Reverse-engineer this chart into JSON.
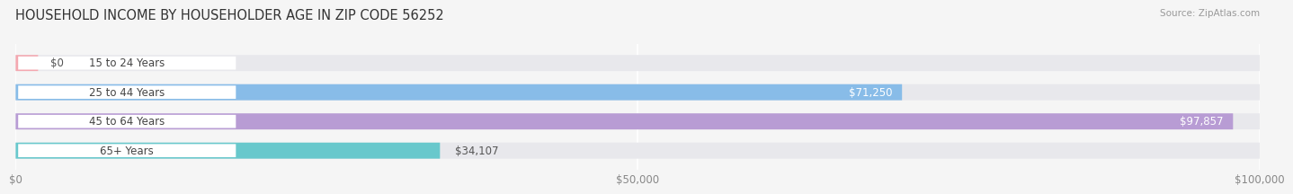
{
  "title": "HOUSEHOLD INCOME BY HOUSEHOLDER AGE IN ZIP CODE 56252",
  "source": "Source: ZipAtlas.com",
  "categories": [
    "15 to 24 Years",
    "25 to 44 Years",
    "45 to 64 Years",
    "65+ Years"
  ],
  "values": [
    0,
    71250,
    97857,
    34107
  ],
  "value_labels": [
    "$0",
    "$71,250",
    "$97,857",
    "$34,107"
  ],
  "bar_colors": [
    "#f4a8b0",
    "#88bce8",
    "#b89cd4",
    "#68c8cc"
  ],
  "bg_color": "#f5f5f5",
  "bar_bg_color": "#e8e8ec",
  "label_pill_color": "#ffffff",
  "xmax": 100000,
  "xticks": [
    0,
    50000,
    100000
  ],
  "xtick_labels": [
    "$0",
    "$50,000",
    "$100,000"
  ],
  "title_fontsize": 10.5,
  "source_fontsize": 7.5,
  "label_fontsize": 8.5,
  "value_fontsize": 8.5,
  "value_inside_threshold": 0.65
}
